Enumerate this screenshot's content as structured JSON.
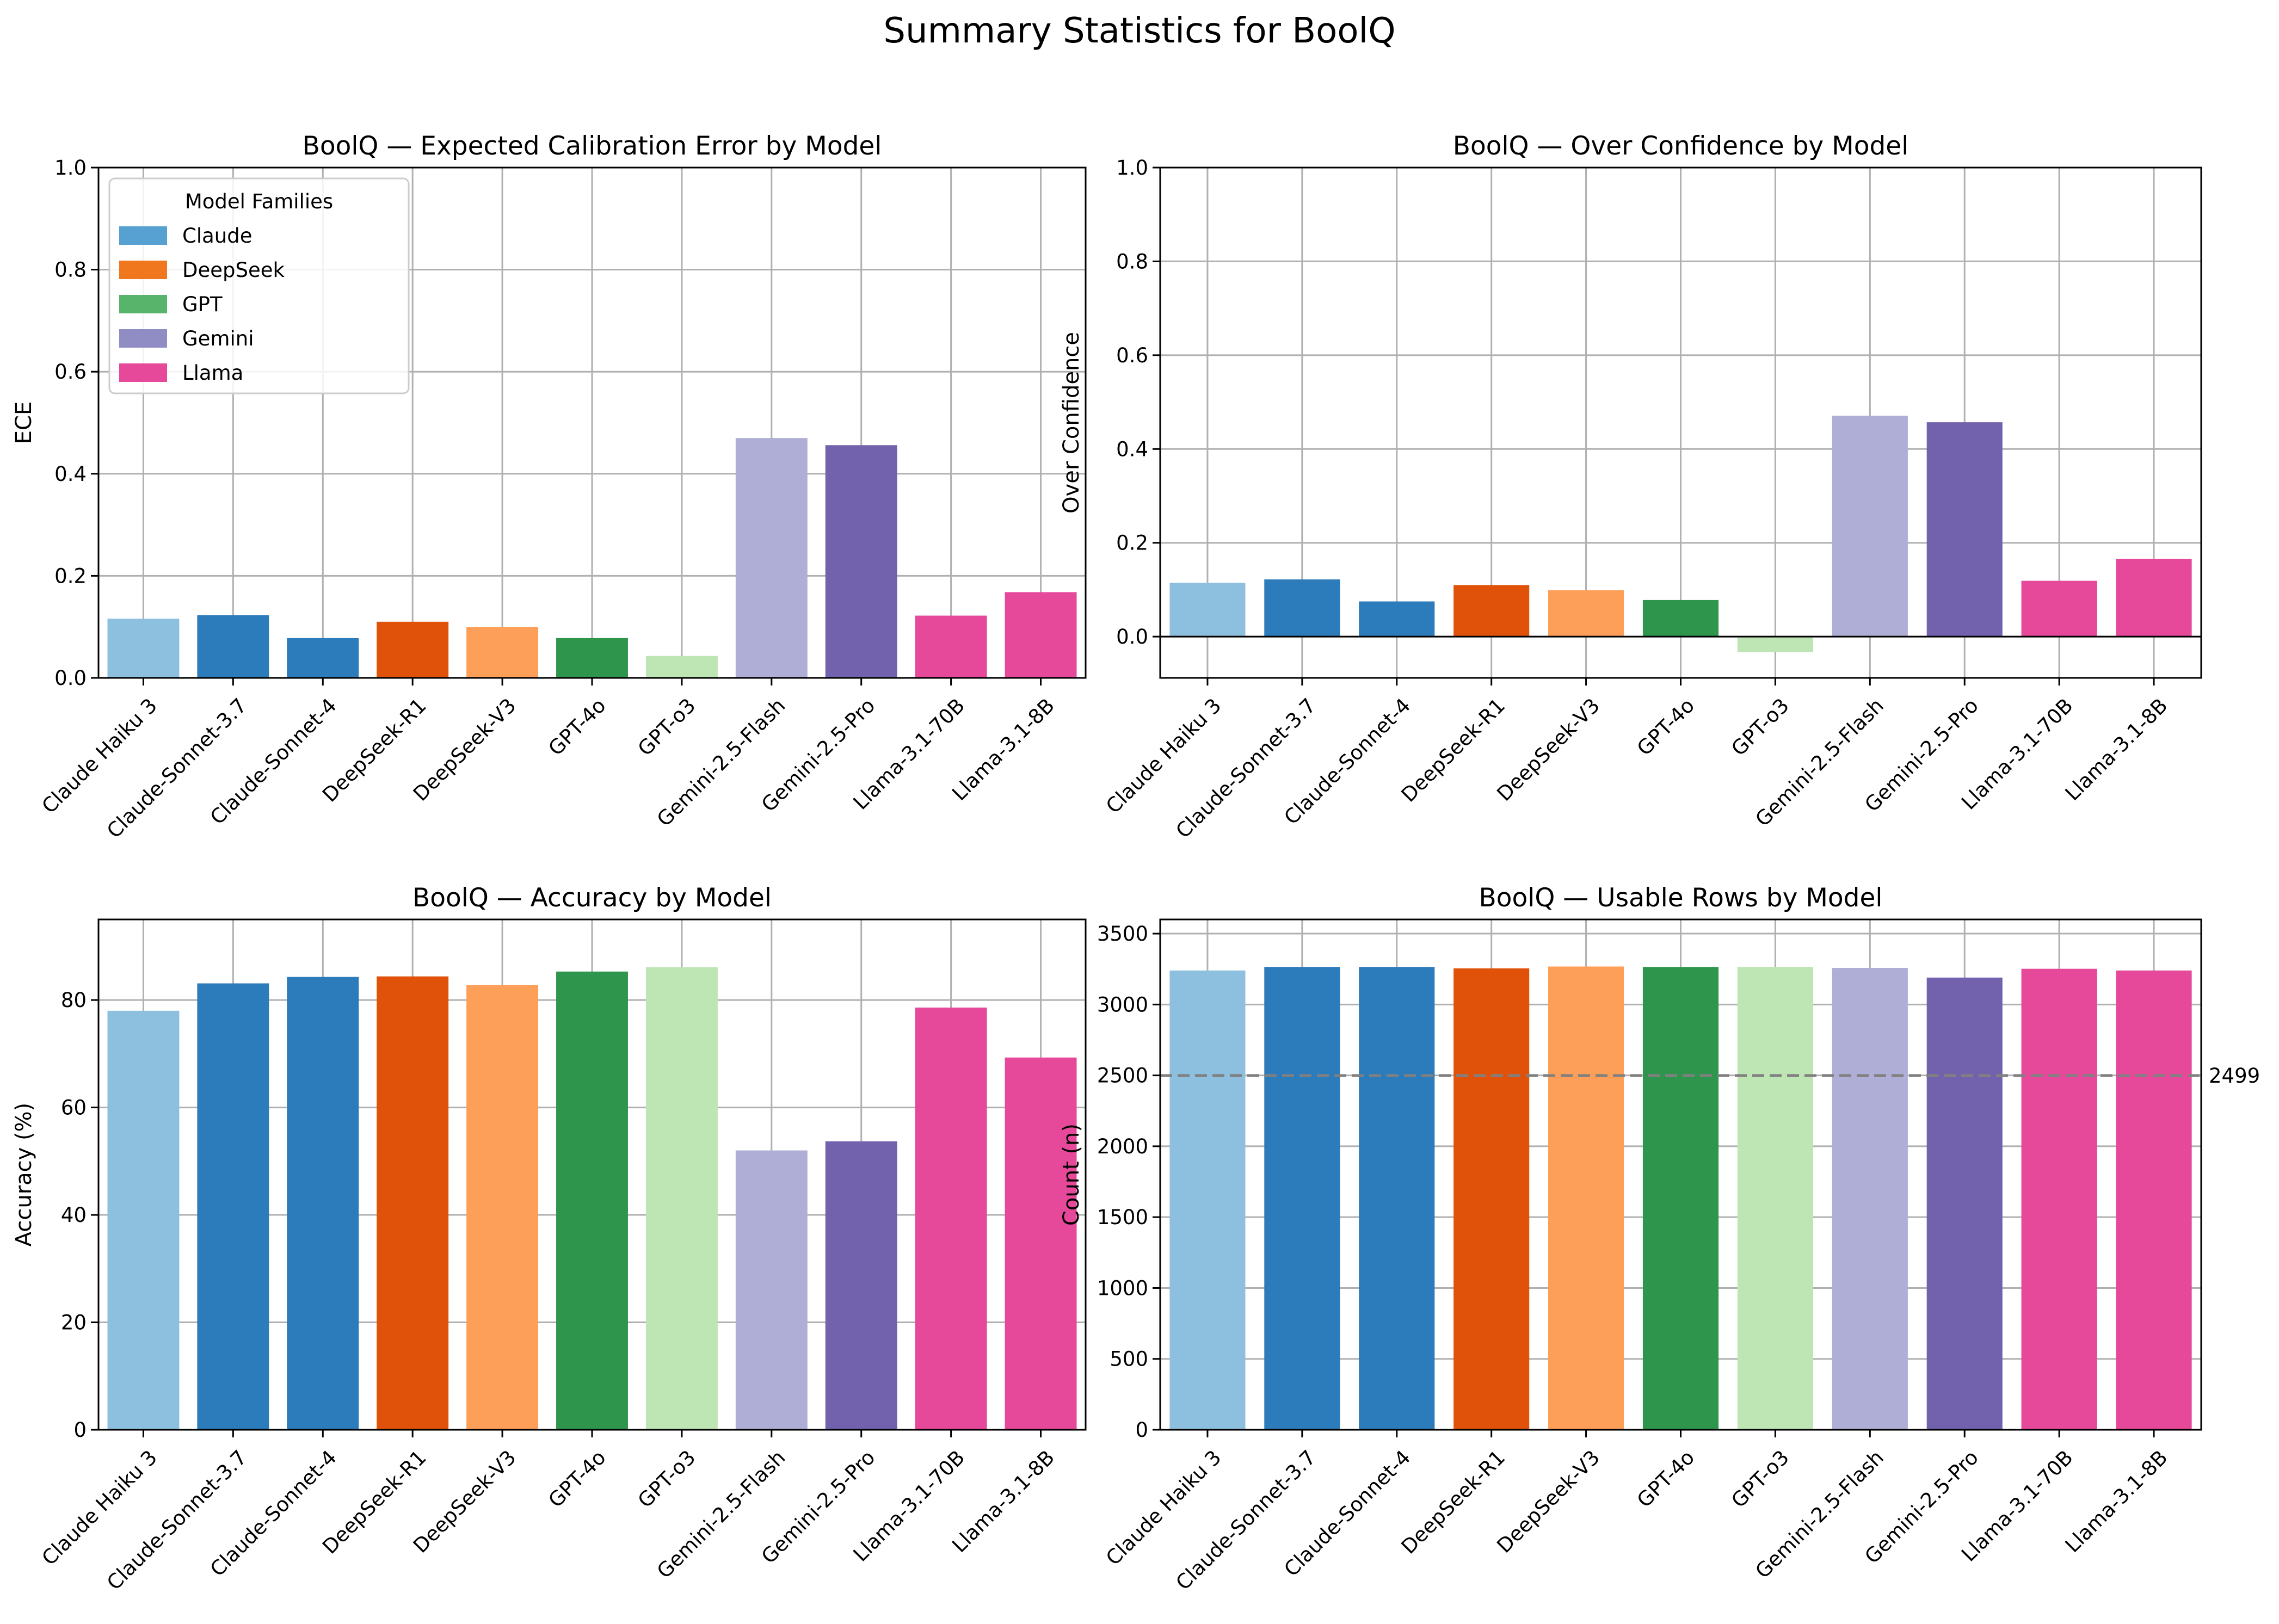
{
  "figure_title": "Summary Statistics for BoolQ",
  "chart_data": [
    {
      "type": "bar",
      "title": "BoolQ — Expected Calibration Error by Model",
      "xlabel": "",
      "ylabel": "ECE",
      "ylim": [
        0,
        1.0
      ],
      "yticks": [
        0.0,
        0.2,
        0.4,
        0.6,
        0.8,
        1.0
      ],
      "ytick_labels": [
        "0.0",
        "0.2",
        "0.4",
        "0.6",
        "0.8",
        "1.0"
      ],
      "grid": true,
      "categories": [
        "Claude Haiku 3",
        "Claude-Sonnet-3.7",
        "Claude-Sonnet-4",
        "DeepSeek-R1",
        "DeepSeek-V3",
        "GPT-4o",
        "GPT-o3",
        "Gemini-2.5-Flash",
        "Gemini-2.5-Pro",
        "Llama-3.1-70B",
        "Llama-3.1-8B"
      ],
      "values": [
        0.116,
        0.123,
        0.078,
        0.11,
        0.1,
        0.078,
        0.043,
        0.47,
        0.456,
        0.122,
        0.168
      ],
      "bar_colors": [
        "#8dbfdf",
        "#2c7bba",
        "#2c7bba",
        "#e0520a",
        "#fd9f58",
        "#2e954c",
        "#bee5b4",
        "#aeaed6",
        "#7261ac",
        "#e6489a",
        "#e6489a"
      ],
      "legend": {
        "title": "Model Families",
        "placement": "upper-left",
        "entries": [
          {
            "label": "Claude",
            "color": "#57a0d2"
          },
          {
            "label": "DeepSeek",
            "color": "#f1771f"
          },
          {
            "label": "GPT",
            "color": "#58b46a"
          },
          {
            "label": "Gemini",
            "color": "#908cc4"
          },
          {
            "label": "Llama",
            "color": "#e6489a"
          }
        ]
      }
    },
    {
      "type": "bar",
      "title": "BoolQ — Over Confidence by Model",
      "xlabel": "",
      "ylabel": "Over Confidence",
      "ylim": [
        -0.088,
        1.0
      ],
      "yticks": [
        0.0,
        0.2,
        0.4,
        0.6,
        0.8,
        1.0
      ],
      "ytick_labels": [
        "0.0",
        "0.2",
        "0.4",
        "0.6",
        "0.8",
        "1.0"
      ],
      "zero_line": true,
      "grid": true,
      "categories": [
        "Claude Haiku 3",
        "Claude-Sonnet-3.7",
        "Claude-Sonnet-4",
        "DeepSeek-R1",
        "DeepSeek-V3",
        "GPT-4o",
        "GPT-o3",
        "Gemini-2.5-Flash",
        "Gemini-2.5-Pro",
        "Llama-3.1-70B",
        "Llama-3.1-8B"
      ],
      "values": [
        0.115,
        0.122,
        0.075,
        0.11,
        0.099,
        0.078,
        -0.033,
        0.471,
        0.457,
        0.119,
        0.166
      ],
      "bar_colors": [
        "#8dbfdf",
        "#2c7bba",
        "#2c7bba",
        "#e0520a",
        "#fd9f58",
        "#2e954c",
        "#bee5b4",
        "#aeaed6",
        "#7261ac",
        "#e6489a",
        "#e6489a"
      ]
    },
    {
      "type": "bar",
      "title": "BoolQ — Accuracy by Model",
      "xlabel": "",
      "ylabel": "Accuracy (%)",
      "ylim": [
        0,
        95
      ],
      "yticks": [
        0,
        20,
        40,
        60,
        80
      ],
      "ytick_labels": [
        "0",
        "20",
        "40",
        "60",
        "80"
      ],
      "grid": true,
      "categories": [
        "Claude Haiku 3",
        "Claude-Sonnet-3.7",
        "Claude-Sonnet-4",
        "DeepSeek-R1",
        "DeepSeek-V3",
        "GPT-4o",
        "GPT-o3",
        "Gemini-2.5-Flash",
        "Gemini-2.5-Pro",
        "Llama-3.1-70B",
        "Llama-3.1-8B"
      ],
      "values": [
        78.0,
        83.1,
        84.3,
        84.4,
        82.8,
        85.3,
        86.1,
        52.0,
        53.7,
        78.6,
        69.3
      ],
      "bar_colors": [
        "#8dbfdf",
        "#2c7bba",
        "#2c7bba",
        "#e0520a",
        "#fd9f58",
        "#2e954c",
        "#bee5b4",
        "#aeaed6",
        "#7261ac",
        "#e6489a",
        "#e6489a"
      ]
    },
    {
      "type": "bar",
      "title": "BoolQ — Usable Rows by Model",
      "xlabel": "",
      "ylabel": "Count (n)",
      "ylim": [
        0,
        3600
      ],
      "yticks": [
        0,
        500,
        1000,
        1500,
        2000,
        2500,
        3000,
        3500
      ],
      "ytick_labels": [
        "0",
        "500",
        "1000",
        "1500",
        "2000",
        "2500",
        "3000",
        "3500"
      ],
      "grid": true,
      "categories": [
        "Claude Haiku 3",
        "Claude-Sonnet-3.7",
        "Claude-Sonnet-4",
        "DeepSeek-R1",
        "DeepSeek-V3",
        "GPT-4o",
        "GPT-o3",
        "Gemini-2.5-Flash",
        "Gemini-2.5-Pro",
        "Llama-3.1-70B",
        "Llama-3.1-8B"
      ],
      "values": [
        3240,
        3265,
        3265,
        3255,
        3268,
        3265,
        3265,
        3258,
        3190,
        3252,
        3240
      ],
      "bar_colors": [
        "#8dbfdf",
        "#2c7bba",
        "#2c7bba",
        "#e0520a",
        "#fd9f58",
        "#2e954c",
        "#bee5b4",
        "#aeaed6",
        "#7261ac",
        "#e6489a",
        "#e6489a"
      ],
      "reference_line": {
        "value": 2499,
        "label": "2499",
        "color": "#808080",
        "style": "dashed"
      }
    }
  ]
}
